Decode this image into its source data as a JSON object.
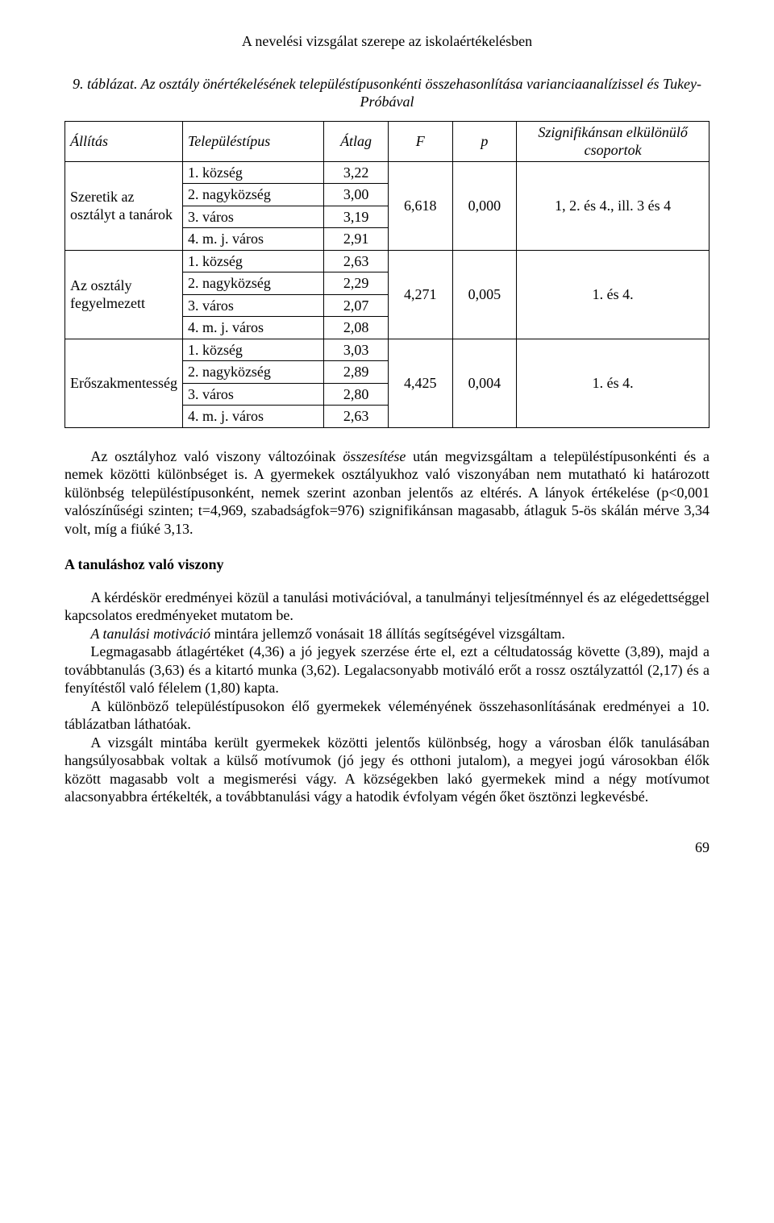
{
  "header": {
    "running_title": "A nevelési vizsgálat szerepe az iskolaértékelésben"
  },
  "table": {
    "caption": "9. táblázat. Az osztály önértékelésének településtípusonkénti összehasonlítása varianciaanalízissel és Tukey-Próbával",
    "columns": {
      "allitas": "Állítás",
      "telepules": "Településtípus",
      "atlag": "Átlag",
      "f": "F",
      "p": "p",
      "szignifikans": "Szignifikánsan elkülönülő csoportok"
    },
    "groups": [
      {
        "allitas": "Szeretik az osztályt a tanárok",
        "rows": [
          {
            "telepules": "1. község",
            "atlag": "3,22"
          },
          {
            "telepules": "2. nagyközség",
            "atlag": "3,00"
          },
          {
            "telepules": "3. város",
            "atlag": "3,19"
          },
          {
            "telepules": "4. m. j. város",
            "atlag": "2,91"
          }
        ],
        "f": "6,618",
        "p": "0,000",
        "szig": "1, 2. és 4., ill. 3 és 4"
      },
      {
        "allitas": "Az osztály fegyelmezett",
        "rows": [
          {
            "telepules": "1. község",
            "atlag": "2,63"
          },
          {
            "telepules": "2. nagyközség",
            "atlag": "2,29"
          },
          {
            "telepules": "3. város",
            "atlag": "2,07"
          },
          {
            "telepules": "4. m. j. város",
            "atlag": "2,08"
          }
        ],
        "f": "4,271",
        "p": "0,005",
        "szig": "1. és 4."
      },
      {
        "allitas": "Erőszakmentesség",
        "rows": [
          {
            "telepules": "1. község",
            "atlag": "3,03"
          },
          {
            "telepules": "2. nagyközség",
            "atlag": "2,89"
          },
          {
            "telepules": "3. város",
            "atlag": "2,80"
          },
          {
            "telepules": "4. m. j. város",
            "atlag": "2,63"
          }
        ],
        "f": "4,425",
        "p": "0,004",
        "szig": "1. és 4."
      }
    ]
  },
  "body": {
    "p1a": "Az osztályhoz való viszony változóinak ",
    "p1b_italic": "összesítése",
    "p1c": " után megvizsgáltam a településtípusonkénti és a nemek közötti különbséget is. A gyermekek osztályukhoz való viszonyában nem mutatható ki határozott különbség településtípusonként, nemek szerint azonban jelentős az eltérés. A lányok értékelése (p<0,001 valószínűségi szinten; t=4,969, szabadságfok=976) szignifikánsan magasabb, átlaguk 5-ös skálán mérve 3,34 volt, míg a fiúké 3,13.",
    "h2": "A tanuláshoz való viszony",
    "p2": "A kérdéskör eredményei közül a tanulási motivációval, a tanulmányi teljesítménnyel és az elégedettséggel kapcsolatos eredményeket mutatom be.",
    "p3a_italic": "A tanulási motiváció",
    "p3b": " mintára jellemző vonásait 18 állítás segítségével vizsgáltam.",
    "p4": "Legmagasabb átlagértéket (4,36) a jó jegyek szerzése érte el, ezt a céltudatosság követte (3,89), majd a továbbtanulás (3,63) és a kitartó munka (3,62). Legalacsonyabb motiváló erőt a rossz osztályzattól (2,17) és a fenyítéstől való félelem (1,80) kapta.",
    "p5": "A különböző településtípusokon élő gyermekek véleményének összehasonlításának eredményei a 10. táblázatban láthatóak.",
    "p6": "A vizsgált mintába került gyermekek közötti jelentős különbség, hogy a városban élők tanulásában hangsúlyosabbak voltak a külső motívumok (jó jegy és otthoni jutalom), a megyei jogú városokban élők között magasabb volt a megismerési vágy. A községekben lakó gyermekek mind a négy motívumot alacsonyabbra értékelték, a továbbtanulási vágy a hatodik évfolyam végén őket ösztönzi legkevésbé."
  },
  "page_number": "69"
}
